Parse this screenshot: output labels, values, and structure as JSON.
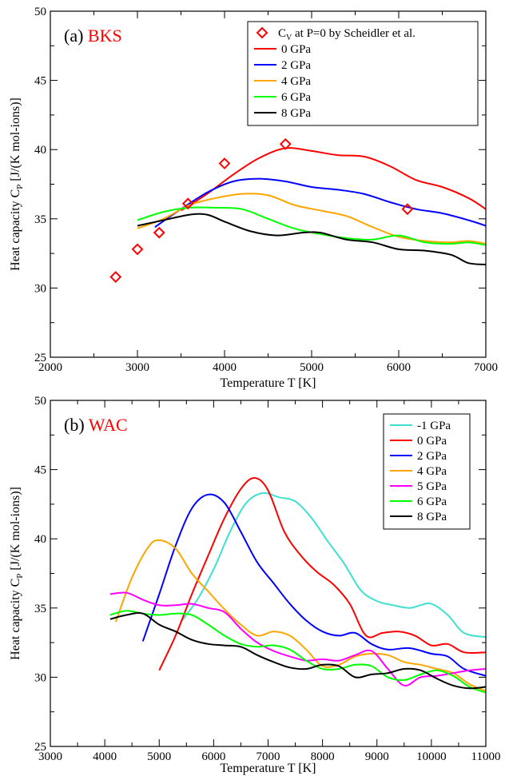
{
  "chart_data": [
    {
      "type": "line",
      "panel_label": "(a)",
      "panel_name": "BKS",
      "panel_name_color": "#ff0000",
      "xlabel": "Temperature  T  [K]",
      "ylabel_main": "Heat capacity C",
      "ylabel_sub": "P",
      "ylabel_unit": " [J/(K mol-ions)]",
      "xlim": [
        2000,
        7000
      ],
      "ylim": [
        25,
        50
      ],
      "xticks": [
        2000,
        3000,
        4000,
        5000,
        6000,
        7000
      ],
      "yticks": [
        25,
        30,
        35,
        40,
        45,
        50
      ],
      "legend_position": "top-right",
      "scatter": {
        "name_main": "C",
        "name_sub": "V",
        "name_rest": " at P=0 by Scheidler et al.",
        "color": "#ff0000",
        "marker": "diamond",
        "points": [
          [
            2750,
            30.8
          ],
          [
            3000,
            32.8
          ],
          [
            3250,
            34.0
          ],
          [
            3580,
            36.1
          ],
          [
            4000,
            39.0
          ],
          [
            4700,
            40.4
          ],
          [
            6100,
            35.7
          ]
        ]
      },
      "series": [
        {
          "name": "0 GPa",
          "color": "#ff0000",
          "points": [
            [
              3500,
              35.6
            ],
            [
              3800,
              36.8
            ],
            [
              4100,
              38.2
            ],
            [
              4400,
              39.4
            ],
            [
              4700,
              40.1
            ],
            [
              5000,
              39.9
            ],
            [
              5300,
              39.6
            ],
            [
              5600,
              39.5
            ],
            [
              5900,
              38.8
            ],
            [
              6200,
              37.8
            ],
            [
              6500,
              37.3
            ],
            [
              6800,
              36.5
            ],
            [
              7000,
              35.7
            ]
          ]
        },
        {
          "name": "2 GPa",
          "color": "#0000ff",
          "points": [
            [
              3200,
              34.4
            ],
            [
              3500,
              35.7
            ],
            [
              3800,
              36.9
            ],
            [
              4100,
              37.7
            ],
            [
              4400,
              37.9
            ],
            [
              4700,
              37.7
            ],
            [
              5000,
              37.3
            ],
            [
              5300,
              37.1
            ],
            [
              5600,
              36.8
            ],
            [
              5900,
              36.2
            ],
            [
              6200,
              35.7
            ],
            [
              6500,
              35.4
            ],
            [
              6800,
              34.9
            ],
            [
              7000,
              34.5
            ]
          ]
        },
        {
          "name": "4 GPa",
          "color": "#ffa500",
          "points": [
            [
              3000,
              34.3
            ],
            [
              3300,
              35.0
            ],
            [
              3600,
              36.0
            ],
            [
              3900,
              36.5
            ],
            [
              4200,
              36.8
            ],
            [
              4500,
              36.7
            ],
            [
              4800,
              36.0
            ],
            [
              5100,
              35.6
            ],
            [
              5400,
              35.2
            ],
            [
              5700,
              34.4
            ],
            [
              6000,
              33.7
            ],
            [
              6300,
              33.4
            ],
            [
              6600,
              33.3
            ],
            [
              6800,
              33.4
            ],
            [
              7000,
              33.2
            ]
          ]
        },
        {
          "name": "6 GPa",
          "color": "#00ff00",
          "points": [
            [
              3000,
              34.9
            ],
            [
              3300,
              35.5
            ],
            [
              3600,
              35.8
            ],
            [
              3900,
              35.8
            ],
            [
              4200,
              35.7
            ],
            [
              4500,
              35.0
            ],
            [
              4800,
              34.3
            ],
            [
              5100,
              33.9
            ],
            [
              5400,
              33.6
            ],
            [
              5700,
              33.5
            ],
            [
              6000,
              33.8
            ],
            [
              6300,
              33.3
            ],
            [
              6600,
              33.2
            ],
            [
              6800,
              33.3
            ],
            [
              7000,
              33.1
            ]
          ]
        },
        {
          "name": "8 GPa",
          "color": "#000000",
          "points": [
            [
              3000,
              34.5
            ],
            [
              3300,
              34.9
            ],
            [
              3600,
              35.3
            ],
            [
              3800,
              35.3
            ],
            [
              4000,
              34.8
            ],
            [
              4300,
              34.1
            ],
            [
              4600,
              33.8
            ],
            [
              4900,
              34.0
            ],
            [
              5100,
              34.0
            ],
            [
              5400,
              33.5
            ],
            [
              5700,
              33.3
            ],
            [
              6000,
              32.8
            ],
            [
              6300,
              32.7
            ],
            [
              6600,
              32.4
            ],
            [
              6800,
              31.8
            ],
            [
              7000,
              31.7
            ]
          ]
        }
      ]
    },
    {
      "type": "line",
      "panel_label": "(b)",
      "panel_name": "WAC",
      "panel_name_color": "#ff0000",
      "xlabel": "Temperature  T  [K]",
      "ylabel_main": "Heat capacity C",
      "ylabel_sub": "P",
      "ylabel_unit": " [J/(K mol-ions)]",
      "xlim": [
        3000,
        11000
      ],
      "ylim": [
        25,
        50
      ],
      "xticks": [
        3000,
        4000,
        5000,
        6000,
        7000,
        8000,
        9000,
        10000,
        11000
      ],
      "yticks": [
        25,
        30,
        35,
        40,
        45,
        50
      ],
      "legend_position": "top-right",
      "series": [
        {
          "name": "-1 GPa",
          "color": "#40e0d0",
          "points": [
            [
              5400,
              34.0
            ],
            [
              5700,
              35.6
            ],
            [
              6000,
              37.8
            ],
            [
              6300,
              40.5
            ],
            [
              6600,
              42.6
            ],
            [
              6900,
              43.3
            ],
            [
              7200,
              43.0
            ],
            [
              7500,
              42.7
            ],
            [
              7800,
              41.5
            ],
            [
              8100,
              39.8
            ],
            [
              8400,
              38.2
            ],
            [
              8700,
              36.3
            ],
            [
              9000,
              35.5
            ],
            [
              9300,
              35.2
            ],
            [
              9600,
              35.0
            ],
            [
              9800,
              35.2
            ],
            [
              10000,
              35.3
            ],
            [
              10300,
              34.5
            ],
            [
              10600,
              33.2
            ],
            [
              11000,
              32.9
            ]
          ]
        },
        {
          "name": "0 GPa",
          "color": "#ff0000",
          "points": [
            [
              5000,
              30.5
            ],
            [
              5300,
              33.0
            ],
            [
              5600,
              36.0
            ],
            [
              5900,
              38.8
            ],
            [
              6200,
              41.5
            ],
            [
              6500,
              43.6
            ],
            [
              6750,
              44.4
            ],
            [
              7000,
              43.5
            ],
            [
              7300,
              40.5
            ],
            [
              7600,
              38.8
            ],
            [
              7900,
              37.6
            ],
            [
              8200,
              36.7
            ],
            [
              8500,
              35.3
            ],
            [
              8800,
              33.0
            ],
            [
              9100,
              33.2
            ],
            [
              9400,
              33.3
            ],
            [
              9700,
              33.0
            ],
            [
              10000,
              32.3
            ],
            [
              10300,
              32.4
            ],
            [
              10600,
              31.8
            ],
            [
              11000,
              31.8
            ]
          ]
        },
        {
          "name": "2 GPa",
          "color": "#0000ff",
          "points": [
            [
              4700,
              32.6
            ],
            [
              5000,
              36.0
            ],
            [
              5300,
              39.5
            ],
            [
              5600,
              42.2
            ],
            [
              5900,
              43.2
            ],
            [
              6200,
              42.6
            ],
            [
              6500,
              40.5
            ],
            [
              6800,
              38.3
            ],
            [
              7100,
              36.8
            ],
            [
              7400,
              35.3
            ],
            [
              7700,
              34.1
            ],
            [
              8000,
              33.3
            ],
            [
              8300,
              33.0
            ],
            [
              8600,
              33.2
            ],
            [
              8900,
              32.4
            ],
            [
              9200,
              32.0
            ],
            [
              9600,
              32.1
            ],
            [
              10000,
              31.7
            ],
            [
              10300,
              31.5
            ],
            [
              10600,
              30.6
            ],
            [
              11000,
              30.1
            ]
          ]
        },
        {
          "name": "4 GPa",
          "color": "#ffa500",
          "points": [
            [
              4200,
              34.0
            ],
            [
              4500,
              37.2
            ],
            [
              4800,
              39.4
            ],
            [
              5000,
              39.9
            ],
            [
              5300,
              39.3
            ],
            [
              5600,
              37.5
            ],
            [
              5900,
              36.2
            ],
            [
              6200,
              34.9
            ],
            [
              6500,
              33.8
            ],
            [
              6800,
              33.0
            ],
            [
              7100,
              33.3
            ],
            [
              7400,
              33.0
            ],
            [
              7700,
              32.0
            ],
            [
              8000,
              30.8
            ],
            [
              8300,
              30.9
            ],
            [
              8600,
              31.5
            ],
            [
              8900,
              31.7
            ],
            [
              9200,
              31.6
            ],
            [
              9500,
              31.1
            ],
            [
              9800,
              30.9
            ],
            [
              10100,
              30.6
            ],
            [
              10400,
              30.3
            ],
            [
              10700,
              29.5
            ],
            [
              11000,
              29.0
            ]
          ]
        },
        {
          "name": "5 GPa",
          "color": "#ff00ff",
          "points": [
            [
              4100,
              36.0
            ],
            [
              4400,
              36.1
            ],
            [
              4700,
              35.6
            ],
            [
              5000,
              35.2
            ],
            [
              5300,
              35.2
            ],
            [
              5600,
              35.3
            ],
            [
              5900,
              35.0
            ],
            [
              6200,
              34.7
            ],
            [
              6500,
              33.5
            ],
            [
              6800,
              32.5
            ],
            [
              7100,
              31.9
            ],
            [
              7400,
              31.5
            ],
            [
              7700,
              31.2
            ],
            [
              8000,
              31.3
            ],
            [
              8300,
              31.2
            ],
            [
              8600,
              31.6
            ],
            [
              8900,
              31.9
            ],
            [
              9200,
              30.6
            ],
            [
              9500,
              29.4
            ],
            [
              9800,
              30.0
            ],
            [
              10100,
              30.1
            ],
            [
              10400,
              30.3
            ],
            [
              10700,
              30.5
            ],
            [
              11000,
              30.6
            ]
          ]
        },
        {
          "name": "6 GPa",
          "color": "#00ff00",
          "points": [
            [
              4100,
              34.5
            ],
            [
              4400,
              34.8
            ],
            [
              4700,
              34.6
            ],
            [
              5000,
              34.5
            ],
            [
              5300,
              34.6
            ],
            [
              5600,
              34.5
            ],
            [
              5900,
              33.8
            ],
            [
              6200,
              33.0
            ],
            [
              6500,
              32.4
            ],
            [
              6800,
              32.2
            ],
            [
              7100,
              32.3
            ],
            [
              7400,
              32.0
            ],
            [
              7700,
              31.2
            ],
            [
              8000,
              30.6
            ],
            [
              8300,
              30.6
            ],
            [
              8600,
              30.9
            ],
            [
              8900,
              30.8
            ],
            [
              9200,
              30.0
            ],
            [
              9500,
              29.8
            ],
            [
              9800,
              30.2
            ],
            [
              10100,
              30.5
            ],
            [
              10400,
              30.1
            ],
            [
              10700,
              29.3
            ],
            [
              11000,
              28.9
            ]
          ]
        },
        {
          "name": "8 GPa",
          "color": "#000000",
          "points": [
            [
              4100,
              34.2
            ],
            [
              4400,
              34.5
            ],
            [
              4700,
              34.6
            ],
            [
              5000,
              33.8
            ],
            [
              5300,
              33.3
            ],
            [
              5600,
              32.7
            ],
            [
              5900,
              32.4
            ],
            [
              6200,
              32.3
            ],
            [
              6500,
              32.2
            ],
            [
              6800,
              31.6
            ],
            [
              7100,
              31.1
            ],
            [
              7400,
              30.7
            ],
            [
              7700,
              30.6
            ],
            [
              8000,
              30.9
            ],
            [
              8300,
              30.8
            ],
            [
              8600,
              30.0
            ],
            [
              8900,
              30.2
            ],
            [
              9200,
              30.3
            ],
            [
              9500,
              30.6
            ],
            [
              9800,
              30.5
            ],
            [
              10100,
              29.9
            ],
            [
              10400,
              29.4
            ],
            [
              10700,
              29.2
            ],
            [
              11000,
              29.3
            ]
          ]
        }
      ]
    }
  ]
}
